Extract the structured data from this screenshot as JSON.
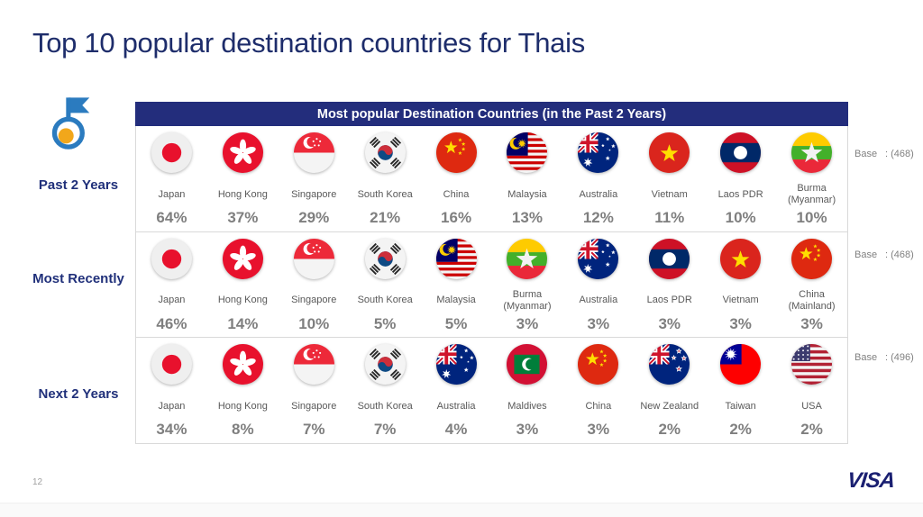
{
  "slide": {
    "title": "Top 10 popular destination countries for Thais",
    "page_number": "12",
    "brand": "VISA"
  },
  "table": {
    "header": "Most popular Destination Countries (in the Past 2 Years)",
    "rows": [
      {
        "label": "Past 2 Years",
        "base_label": "Base",
        "base_value": ": (468)",
        "entries": [
          {
            "country": "Japan",
            "flag": "japan",
            "value": "64%"
          },
          {
            "country": "Hong Kong",
            "flag": "hongkong",
            "value": "37%"
          },
          {
            "country": "Singapore",
            "flag": "singapore",
            "value": "29%"
          },
          {
            "country": "South Korea",
            "flag": "southkorea",
            "value": "21%"
          },
          {
            "country": "China",
            "flag": "china",
            "value": "16%"
          },
          {
            "country": "Malaysia",
            "flag": "malaysia",
            "value": "13%"
          },
          {
            "country": "Australia",
            "flag": "australia",
            "value": "12%"
          },
          {
            "country": "Vietnam",
            "flag": "vietnam",
            "value": "11%"
          },
          {
            "country": "Laos PDR",
            "flag": "laos",
            "value": "10%"
          },
          {
            "country": "Burma (Myanmar)",
            "flag": "myanmar",
            "value": "10%"
          }
        ]
      },
      {
        "label": "Most Recently",
        "base_label": "Base",
        "base_value": ": (468)",
        "entries": [
          {
            "country": "Japan",
            "flag": "japan",
            "value": "46%"
          },
          {
            "country": "Hong Kong",
            "flag": "hongkong",
            "value": "14%"
          },
          {
            "country": "Singapore",
            "flag": "singapore",
            "value": "10%"
          },
          {
            "country": "South Korea",
            "flag": "southkorea",
            "value": "5%"
          },
          {
            "country": "Malaysia",
            "flag": "malaysia",
            "value": "5%"
          },
          {
            "country": "Burma (Myanmar)",
            "flag": "myanmar",
            "value": "3%"
          },
          {
            "country": "Australia",
            "flag": "australia",
            "value": "3%"
          },
          {
            "country": "Laos PDR",
            "flag": "laos",
            "value": "3%"
          },
          {
            "country": "Vietnam",
            "flag": "vietnam",
            "value": "3%"
          },
          {
            "country": "China (Mainland)",
            "flag": "china",
            "value": "3%"
          }
        ]
      },
      {
        "label": "Next 2 Years",
        "base_label": "Base",
        "base_value": ": (496)",
        "entries": [
          {
            "country": "Japan",
            "flag": "japan",
            "value": "34%"
          },
          {
            "country": "Hong Kong",
            "flag": "hongkong",
            "value": "8%"
          },
          {
            "country": "Singapore",
            "flag": "singapore",
            "value": "7%"
          },
          {
            "country": "South Korea",
            "flag": "southkorea",
            "value": "7%"
          },
          {
            "country": "Australia",
            "flag": "australia",
            "value": "4%"
          },
          {
            "country": "Maldives",
            "flag": "maldives",
            "value": "3%"
          },
          {
            "country": "China",
            "flag": "china",
            "value": "3%"
          },
          {
            "country": "New Zealand",
            "flag": "newzealand",
            "value": "2%"
          },
          {
            "country": "Taiwan",
            "flag": "taiwan",
            "value": "2%"
          },
          {
            "country": "USA",
            "flag": "usa",
            "value": "2%"
          }
        ]
      }
    ]
  },
  "colors": {
    "title": "#1e2d6b",
    "header_bg": "#232d7c",
    "label_navy": "#20307a",
    "name_gray": "#595959",
    "value_gray": "#7f7f7f",
    "visa_blue": "#1a1f71",
    "pin_blue": "#2b7bbf",
    "pin_yellow": "#f2a71b"
  },
  "chart_data": {
    "type": "table",
    "title": "Most popular Destination Countries (in the Past 2 Years)",
    "groups": [
      {
        "period": "Past 2 Years",
        "base": 468,
        "categories": [
          "Japan",
          "Hong Kong",
          "Singapore",
          "South Korea",
          "China",
          "Malaysia",
          "Australia",
          "Vietnam",
          "Laos PDR",
          "Burma (Myanmar)"
        ],
        "values_pct": [
          64,
          37,
          29,
          21,
          16,
          13,
          12,
          11,
          10,
          10
        ]
      },
      {
        "period": "Most Recently",
        "base": 468,
        "categories": [
          "Japan",
          "Hong Kong",
          "Singapore",
          "South Korea",
          "Malaysia",
          "Burma (Myanmar)",
          "Australia",
          "Laos PDR",
          "Vietnam",
          "China (Mainland)"
        ],
        "values_pct": [
          46,
          14,
          10,
          5,
          5,
          3,
          3,
          3,
          3,
          3
        ]
      },
      {
        "period": "Next 2 Years",
        "base": 496,
        "categories": [
          "Japan",
          "Hong Kong",
          "Singapore",
          "South Korea",
          "Australia",
          "Maldives",
          "China",
          "New Zealand",
          "Taiwan",
          "USA"
        ],
        "values_pct": [
          34,
          8,
          7,
          7,
          4,
          3,
          3,
          2,
          2,
          2
        ]
      }
    ]
  }
}
